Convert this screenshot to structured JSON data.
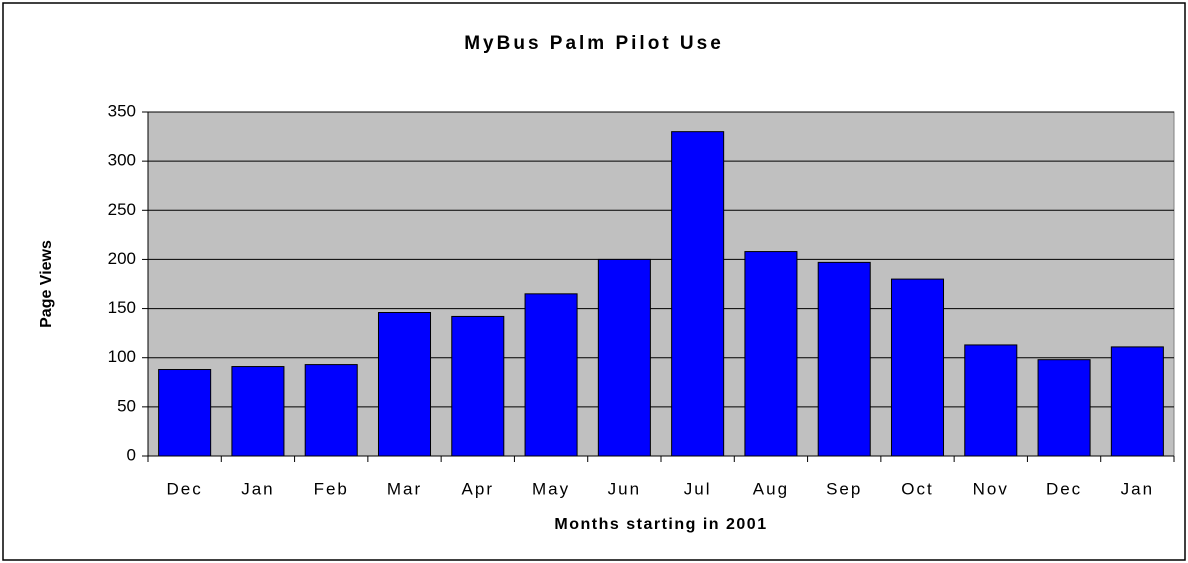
{
  "chart_data": {
    "type": "bar",
    "title": "MyBus Palm Pilot Use",
    "x_label": "Months starting in 2001",
    "y_label": "Page Views",
    "categories": [
      "Dec",
      "Jan",
      "Feb",
      "Mar",
      "Apr",
      "May",
      "Jun",
      "Jul",
      "Aug",
      "Sep",
      "Oct",
      "Nov",
      "Dec",
      "Jan"
    ],
    "values": [
      88,
      91,
      93,
      146,
      142,
      165,
      200,
      330,
      208,
      197,
      180,
      113,
      98,
      111
    ],
    "color": "#0000ff",
    "ylim": [
      0,
      350
    ],
    "yticks": [
      0,
      50,
      100,
      150,
      200,
      250,
      300,
      350
    ],
    "grid": true
  }
}
